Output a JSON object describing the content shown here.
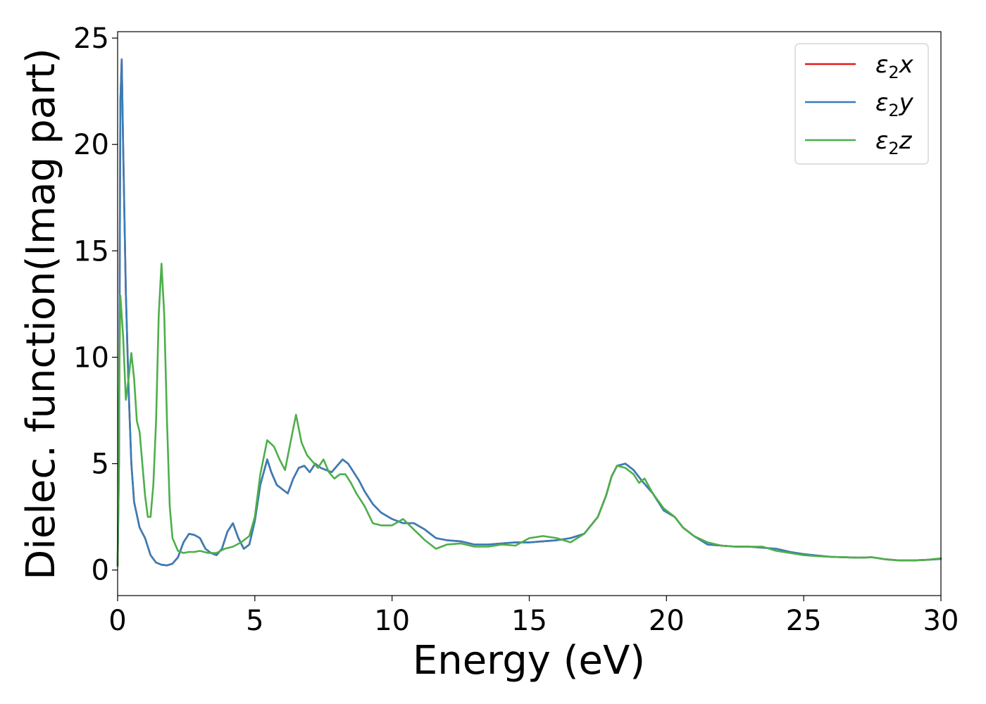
{
  "chart_data": {
    "type": "line",
    "xlabel": "Energy (eV)",
    "ylabel": "Dielec. function(Imag part)",
    "xlim": [
      0,
      30
    ],
    "ylim": [
      -1.2,
      25.3
    ],
    "xticks": [
      0,
      5,
      10,
      15,
      20,
      25,
      30
    ],
    "yticks": [
      0,
      5,
      10,
      15,
      20,
      25
    ],
    "grid": false,
    "legend_position": "top-right",
    "series": [
      {
        "name": "ε₂x",
        "legend_base": "ε",
        "legend_sub": "2",
        "legend_suffix": "x",
        "color": "#e41a1c",
        "x": [
          0,
          0.05,
          0.1,
          0.15,
          0.2,
          0.3,
          0.4,
          0.5,
          0.6,
          0.8,
          1.0,
          1.2,
          1.4,
          1.6,
          1.8,
          2.0,
          2.2,
          2.4,
          2.6,
          2.8,
          3.0,
          3.2,
          3.4,
          3.6,
          3.8,
          4.0,
          4.2,
          4.4,
          4.6,
          4.8,
          5.0,
          5.2,
          5.45,
          5.6,
          5.8,
          6.0,
          6.2,
          6.4,
          6.6,
          6.8,
          7.0,
          7.2,
          7.4,
          7.6,
          7.8,
          8.0,
          8.2,
          8.4,
          8.6,
          8.8,
          9.0,
          9.3,
          9.6,
          10.0,
          10.4,
          10.8,
          11.2,
          11.6,
          12.0,
          12.5,
          13.0,
          13.5,
          14.0,
          14.5,
          15.0,
          15.5,
          16.0,
          16.5,
          17.0,
          17.5,
          17.8,
          18.0,
          18.2,
          18.5,
          18.8,
          19.1,
          19.5,
          19.9,
          20.3,
          20.6,
          21.0,
          21.5,
          22.0,
          22.5,
          23.0,
          23.5,
          24.0,
          24.5,
          25.0,
          25.5,
          26.0,
          26.5,
          27.0,
          27.5,
          28.0,
          28.5,
          29.0,
          29.5,
          30.0
        ],
        "values": [
          0.2,
          5,
          22,
          24,
          20,
          13,
          8.5,
          5,
          3.2,
          2.0,
          1.5,
          0.7,
          0.35,
          0.25,
          0.22,
          0.3,
          0.6,
          1.3,
          1.7,
          1.65,
          1.5,
          1.0,
          0.8,
          0.7,
          1.0,
          1.8,
          2.2,
          1.5,
          1.0,
          1.2,
          2.3,
          4.0,
          5.2,
          4.6,
          4.0,
          3.8,
          3.6,
          4.3,
          4.8,
          4.9,
          4.6,
          5.0,
          4.8,
          4.7,
          4.6,
          4.9,
          5.2,
          5.0,
          4.6,
          4.2,
          3.7,
          3.1,
          2.7,
          2.4,
          2.2,
          2.2,
          1.9,
          1.5,
          1.4,
          1.35,
          1.2,
          1.2,
          1.25,
          1.3,
          1.3,
          1.35,
          1.4,
          1.5,
          1.7,
          2.5,
          3.5,
          4.4,
          4.9,
          5.0,
          4.7,
          4.2,
          3.6,
          2.8,
          2.5,
          2.0,
          1.6,
          1.2,
          1.15,
          1.1,
          1.1,
          1.05,
          1.0,
          0.85,
          0.75,
          0.68,
          0.62,
          0.6,
          0.58,
          0.6,
          0.5,
          0.45,
          0.45,
          0.48,
          0.52
        ]
      },
      {
        "name": "ε₂y",
        "legend_base": "ε",
        "legend_sub": "2",
        "legend_suffix": "y",
        "color": "#377eb8",
        "x": [
          0,
          0.05,
          0.1,
          0.15,
          0.2,
          0.3,
          0.4,
          0.5,
          0.6,
          0.8,
          1.0,
          1.2,
          1.4,
          1.6,
          1.8,
          2.0,
          2.2,
          2.4,
          2.6,
          2.8,
          3.0,
          3.2,
          3.4,
          3.6,
          3.8,
          4.0,
          4.2,
          4.4,
          4.6,
          4.8,
          5.0,
          5.2,
          5.45,
          5.6,
          5.8,
          6.0,
          6.2,
          6.4,
          6.6,
          6.8,
          7.0,
          7.2,
          7.4,
          7.6,
          7.8,
          8.0,
          8.2,
          8.4,
          8.6,
          8.8,
          9.0,
          9.3,
          9.6,
          10.0,
          10.4,
          10.8,
          11.2,
          11.6,
          12.0,
          12.5,
          13.0,
          13.5,
          14.0,
          14.5,
          15.0,
          15.5,
          16.0,
          16.5,
          17.0,
          17.5,
          17.8,
          18.0,
          18.2,
          18.5,
          18.8,
          19.1,
          19.5,
          19.9,
          20.3,
          20.6,
          21.0,
          21.5,
          22.0,
          22.5,
          23.0,
          23.5,
          24.0,
          24.5,
          25.0,
          25.5,
          26.0,
          26.5,
          27.0,
          27.5,
          28.0,
          28.5,
          29.0,
          29.5,
          30.0
        ],
        "values": [
          0.2,
          5,
          22,
          24,
          20,
          13,
          8.5,
          5,
          3.2,
          2.0,
          1.5,
          0.7,
          0.35,
          0.25,
          0.22,
          0.3,
          0.6,
          1.3,
          1.7,
          1.65,
          1.5,
          1.0,
          0.8,
          0.7,
          1.0,
          1.8,
          2.2,
          1.5,
          1.0,
          1.2,
          2.3,
          4.0,
          5.2,
          4.6,
          4.0,
          3.8,
          3.6,
          4.3,
          4.8,
          4.9,
          4.6,
          5.0,
          4.8,
          4.7,
          4.6,
          4.9,
          5.2,
          5.0,
          4.6,
          4.2,
          3.7,
          3.1,
          2.7,
          2.4,
          2.2,
          2.2,
          1.9,
          1.5,
          1.4,
          1.35,
          1.2,
          1.2,
          1.25,
          1.3,
          1.3,
          1.35,
          1.4,
          1.5,
          1.7,
          2.5,
          3.5,
          4.4,
          4.9,
          5.0,
          4.7,
          4.2,
          3.6,
          2.8,
          2.5,
          2.0,
          1.6,
          1.2,
          1.15,
          1.1,
          1.1,
          1.05,
          1.0,
          0.85,
          0.75,
          0.68,
          0.62,
          0.6,
          0.58,
          0.6,
          0.5,
          0.45,
          0.45,
          0.48,
          0.52
        ]
      },
      {
        "name": "ε₂z",
        "legend_base": "ε",
        "legend_sub": "2",
        "legend_suffix": "z",
        "color": "#4daf4a",
        "x": [
          0,
          0.05,
          0.1,
          0.2,
          0.3,
          0.4,
          0.5,
          0.6,
          0.7,
          0.8,
          1.0,
          1.1,
          1.2,
          1.3,
          1.4,
          1.5,
          1.6,
          1.7,
          1.8,
          1.9,
          2.0,
          2.2,
          2.4,
          2.6,
          2.8,
          3.0,
          3.3,
          3.6,
          3.9,
          4.2,
          4.5,
          4.8,
          5.0,
          5.2,
          5.45,
          5.7,
          5.9,
          6.1,
          6.3,
          6.5,
          6.7,
          6.9,
          7.1,
          7.3,
          7.5,
          7.7,
          7.9,
          8.1,
          8.3,
          8.5,
          8.7,
          9.0,
          9.3,
          9.6,
          10.0,
          10.4,
          10.8,
          11.2,
          11.6,
          12.0,
          12.5,
          13.0,
          13.5,
          14.0,
          14.5,
          15.0,
          15.5,
          16.0,
          16.5,
          17.0,
          17.5,
          17.8,
          18.0,
          18.2,
          18.5,
          18.8,
          19.0,
          19.2,
          19.5,
          19.9,
          20.3,
          20.6,
          21.0,
          21.5,
          22.0,
          22.5,
          23.0,
          23.5,
          24.0,
          24.5,
          25.0,
          25.5,
          26.0,
          26.5,
          27.0,
          27.5,
          28.0,
          28.5,
          29.0,
          29.5,
          30.0
        ],
        "values": [
          0.2,
          8,
          12.9,
          11,
          8,
          9,
          10.2,
          9,
          7,
          6.5,
          3.5,
          2.5,
          2.5,
          4,
          7,
          12,
          14.4,
          12,
          7,
          3,
          1.5,
          0.9,
          0.8,
          0.85,
          0.85,
          0.9,
          0.8,
          0.8,
          1.0,
          1.1,
          1.3,
          1.6,
          2.5,
          4.5,
          6.1,
          5.8,
          5.2,
          4.7,
          6.0,
          7.3,
          6.0,
          5.4,
          5.1,
          4.8,
          5.2,
          4.6,
          4.3,
          4.5,
          4.5,
          4.1,
          3.6,
          3.0,
          2.2,
          2.1,
          2.1,
          2.4,
          1.9,
          1.4,
          1.0,
          1.2,
          1.25,
          1.1,
          1.1,
          1.2,
          1.15,
          1.5,
          1.6,
          1.5,
          1.3,
          1.7,
          2.5,
          3.5,
          4.4,
          4.9,
          4.8,
          4.5,
          4.1,
          4.3,
          3.6,
          2.9,
          2.5,
          2.0,
          1.6,
          1.3,
          1.15,
          1.1,
          1.1,
          1.1,
          0.9,
          0.8,
          0.7,
          0.65,
          0.62,
          0.6,
          0.58,
          0.6,
          0.5,
          0.45,
          0.45,
          0.48,
          0.55
        ]
      }
    ]
  }
}
